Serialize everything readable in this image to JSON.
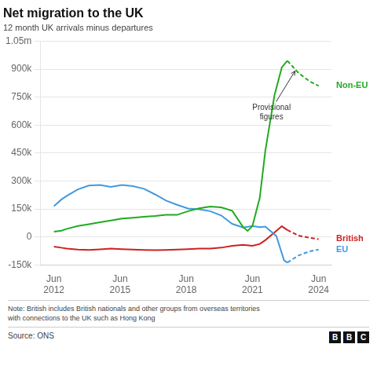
{
  "chart_data": {
    "type": "line",
    "title": "Net migration to the UK",
    "subtitle": "12 month UK arrivals minus departures",
    "note": "Note: British includes British nationals and other groups from overseas territories\nwith connections to the UK such as Hong Kong",
    "source": "Source: ONS",
    "logo": "BBC",
    "grid": true,
    "xlim": [
      2011.8,
      2025.0
    ],
    "xticks": [
      {
        "value": 2012.417,
        "label": "Jun\n2012"
      },
      {
        "value": 2015.417,
        "label": "Jun\n2015"
      },
      {
        "value": 2018.417,
        "label": "Jun\n2018"
      },
      {
        "value": 2021.417,
        "label": "Jun\n2021"
      },
      {
        "value": 2024.417,
        "label": "Jun\n2024"
      }
    ],
    "ylim": [
      -150000,
      1050000
    ],
    "yticks": [
      {
        "value": -150000,
        "label": "-150k"
      },
      0,
      {
        "value": 150000,
        "label": "150k"
      },
      {
        "value": 300000,
        "label": "300k"
      },
      {
        "value": 450000,
        "label": "450k"
      },
      {
        "value": 600000,
        "label": "600k"
      },
      {
        "value": 750000,
        "label": "750k"
      },
      {
        "value": 900000,
        "label": "900k"
      },
      {
        "value": 1050000,
        "label": "1.05m"
      }
    ],
    "annotations": [
      {
        "text": "Provisional\nfigures",
        "x": 2023.35,
        "y": 890000
      }
    ],
    "series": [
      {
        "name": "Non-EU",
        "color": "#22aa22",
        "line_style": "solid",
        "x": [
          2012.417,
          2012.75,
          2013.0,
          2013.5,
          2014.0,
          2014.5,
          2015.0,
          2015.5,
          2016.0,
          2016.5,
          2017.0,
          2017.5,
          2018.0,
          2018.5,
          2019.0,
          2019.5,
          2020.0,
          2020.5,
          2021.0,
          2021.2,
          2021.417,
          2021.75,
          2022.0,
          2022.417,
          2022.75,
          2023.0
        ],
        "values": [
          28000,
          33000,
          43000,
          58000,
          68000,
          78000,
          88000,
          98000,
          103000,
          108000,
          112000,
          118000,
          118000,
          138000,
          153000,
          163000,
          158000,
          140000,
          52000,
          32000,
          58000,
          210000,
          460000,
          760000,
          910000,
          945000
        ]
      },
      {
        "name": "Non-EU",
        "color": "#22aa22",
        "line_style": "dashed",
        "x": [
          2023.0,
          2023.5,
          2024.0,
          2024.417
        ],
        "values": [
          945000,
          880000,
          835000,
          810000
        ]
      },
      {
        "name": "EU",
        "color": "#4499dd",
        "line_style": "solid",
        "x": [
          2012.417,
          2012.75,
          2013.0,
          2013.5,
          2014.0,
          2014.5,
          2015.0,
          2015.5,
          2016.0,
          2016.5,
          2017.0,
          2017.5,
          2018.0,
          2018.5,
          2019.0,
          2019.5,
          2020.0,
          2020.5,
          2021.0,
          2021.417,
          2021.75,
          2022.0,
          2022.5,
          2022.85,
          2023.0
        ],
        "values": [
          165000,
          200000,
          220000,
          255000,
          275000,
          278000,
          268000,
          278000,
          272000,
          258000,
          228000,
          195000,
          172000,
          152000,
          148000,
          138000,
          115000,
          70000,
          50000,
          58000,
          52000,
          55000,
          5000,
          -125000,
          -138000
        ]
      },
      {
        "name": "EU",
        "color": "#4499dd",
        "line_style": "dashed",
        "x": [
          2023.0,
          2023.5,
          2024.0,
          2024.417
        ],
        "values": [
          -138000,
          -100000,
          -78000,
          -68000
        ]
      },
      {
        "name": "British",
        "color": "#cc2222",
        "line_style": "solid",
        "x": [
          2012.417,
          2012.75,
          2013.0,
          2013.5,
          2014.0,
          2014.5,
          2015.0,
          2015.5,
          2016.0,
          2016.5,
          2017.0,
          2017.5,
          2018.0,
          2018.5,
          2019.0,
          2019.5,
          2020.0,
          2020.5,
          2021.0,
          2021.417,
          2021.75,
          2022.0,
          2022.5,
          2022.75,
          2023.0
        ],
        "values": [
          -52000,
          -58000,
          -63000,
          -68000,
          -70000,
          -67000,
          -63000,
          -66000,
          -68000,
          -70000,
          -71000,
          -70000,
          -68000,
          -66000,
          -63000,
          -63000,
          -58000,
          -48000,
          -43000,
          -48000,
          -38000,
          -18000,
          32000,
          57000,
          37000
        ]
      },
      {
        "name": "British",
        "color": "#cc2222",
        "line_style": "dashed",
        "x": [
          2023.0,
          2023.5,
          2024.0,
          2024.417
        ],
        "values": [
          37000,
          7000,
          -5000,
          -12000
        ]
      }
    ]
  }
}
